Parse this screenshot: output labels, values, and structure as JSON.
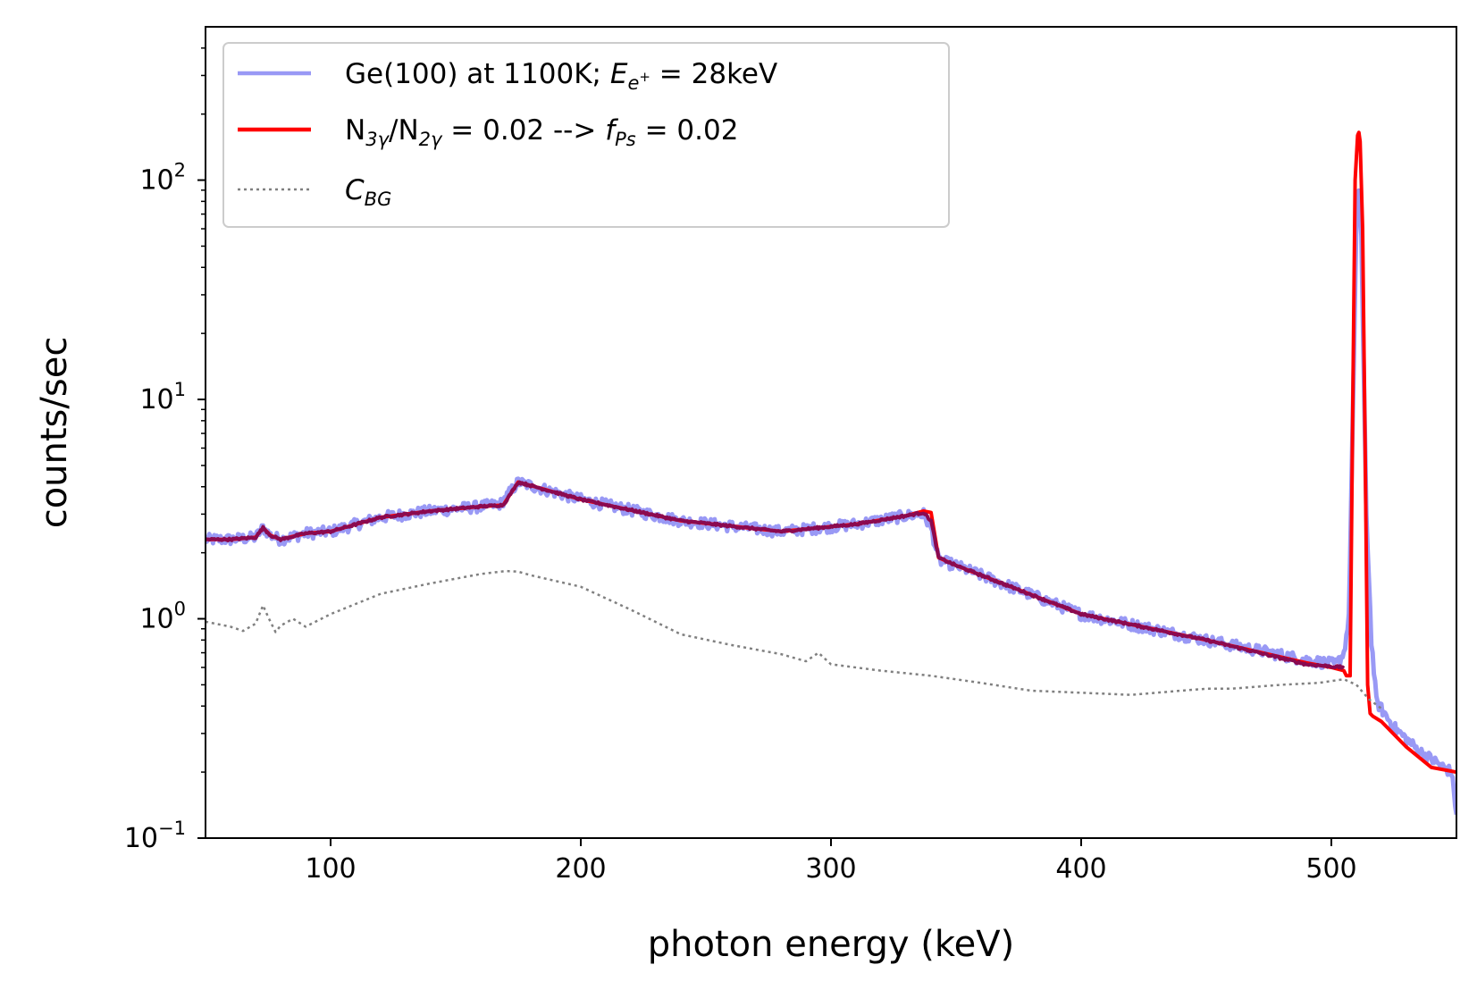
{
  "chart_data": {
    "type": "line",
    "xscale": "linear",
    "yscale": "log",
    "xlim": [
      50,
      550
    ],
    "ylim": [
      0.1,
      500
    ],
    "xlabel": "photon energy (keV)",
    "ylabel": "counts/sec",
    "x_ticks": [
      {
        "value": 100,
        "label": "100"
      },
      {
        "value": 200,
        "label": "200"
      },
      {
        "value": 300,
        "label": "300"
      },
      {
        "value": 400,
        "label": "400"
      },
      {
        "value": 500,
        "label": "500"
      }
    ],
    "y_ticks": [
      {
        "value": 0.1,
        "base": "10",
        "exp": "−1"
      },
      {
        "value": 1,
        "base": "10",
        "exp": "0"
      },
      {
        "value": 10,
        "base": "10",
        "exp": "1"
      },
      {
        "value": 100,
        "base": "10",
        "exp": "2"
      }
    ],
    "legend": {
      "location": "upper-left",
      "entries": [
        {
          "series": "measured",
          "parts": [
            {
              "t": "Ge(100) at 1100K; ",
              "s": "n"
            },
            {
              "t": "E",
              "s": "i"
            },
            {
              "t": "e",
              "s": "sub"
            },
            {
              "t": "+",
              "s": "subsup"
            },
            {
              "t": " = 28keV",
              "s": "n"
            }
          ]
        },
        {
          "series": "fit",
          "parts": [
            {
              "t": "N",
              "s": "n"
            },
            {
              "t": "3γ",
              "s": "sub"
            },
            {
              "t": "/N",
              "s": "n"
            },
            {
              "t": "2γ",
              "s": "sub"
            },
            {
              "t": " = 0.02 --> ",
              "s": "n"
            },
            {
              "t": "f",
              "s": "i"
            },
            {
              "t": "Ps",
              "s": "sub"
            },
            {
              "t": " = 0.02",
              "s": "n"
            }
          ]
        },
        {
          "series": "background",
          "parts": [
            {
              "t": "C",
              "s": "i"
            },
            {
              "t": "BG",
              "s": "sub"
            }
          ]
        }
      ]
    },
    "series": [
      {
        "name": "measured",
        "label": "Ge(100) at 1100K; Ee+ = 28keV",
        "color": "#9999f5",
        "style": "solid",
        "noise": 0.06,
        "x": [
          50,
          60,
          70,
          73,
          76,
          80,
          90,
          100,
          120,
          140,
          160,
          168,
          175,
          200,
          240,
          280,
          310,
          330,
          337,
          340,
          343,
          350,
          400,
          450,
          490,
          502,
          505,
          507,
          509,
          510,
          511,
          512,
          513,
          514,
          516,
          518,
          525,
          535,
          545,
          548,
          550
        ],
        "y": [
          2.3,
          2.3,
          2.35,
          2.6,
          2.4,
          2.3,
          2.45,
          2.5,
          2.9,
          3.1,
          3.25,
          3.35,
          4.2,
          3.5,
          2.8,
          2.5,
          2.7,
          2.95,
          3.0,
          2.6,
          1.85,
          1.75,
          1.05,
          0.8,
          0.65,
          0.62,
          0.7,
          1.0,
          15,
          60,
          90,
          55,
          12,
          3.0,
          0.8,
          0.42,
          0.32,
          0.25,
          0.21,
          0.2,
          0.13
        ]
      },
      {
        "name": "fit",
        "label": "N3γ/N2γ = 0.02 --> fPs = 0.02",
        "color": "#ff0000",
        "style": "solid",
        "noise": 0,
        "x": [
          50,
          60,
          70,
          73,
          76,
          80,
          90,
          100,
          120,
          140,
          160,
          169,
          175,
          200,
          240,
          280,
          310,
          330,
          337,
          340,
          343,
          350,
          400,
          450,
          490,
          500,
          505,
          506,
          507.5,
          508.5,
          509.5,
          510.5,
          511,
          511.5,
          512.5,
          513.5,
          514.5,
          515.5,
          516.5,
          520,
          530,
          540,
          550
        ],
        "y": [
          2.3,
          2.3,
          2.35,
          2.6,
          2.4,
          2.3,
          2.45,
          2.5,
          2.9,
          3.1,
          3.25,
          3.3,
          4.2,
          3.5,
          2.8,
          2.5,
          2.7,
          2.95,
          3.1,
          3.05,
          1.9,
          1.75,
          1.05,
          0.8,
          0.63,
          0.6,
          0.58,
          0.55,
          0.55,
          8,
          100,
          160,
          165,
          150,
          60,
          6,
          0.5,
          0.37,
          0.36,
          0.34,
          0.26,
          0.21,
          0.2
        ]
      },
      {
        "name": "overlap",
        "label": "",
        "color": "#8b0a50",
        "style": "solid",
        "noise": 0.012,
        "x": [
          50,
          60,
          70,
          73,
          76,
          80,
          90,
          100,
          120,
          140,
          160,
          169,
          175,
          200,
          240,
          280,
          310,
          330,
          337,
          340,
          343,
          350,
          400,
          450,
          490,
          505
        ],
        "y": [
          2.3,
          2.3,
          2.35,
          2.6,
          2.4,
          2.3,
          2.45,
          2.5,
          2.9,
          3.1,
          3.25,
          3.3,
          4.2,
          3.5,
          2.8,
          2.5,
          2.7,
          2.95,
          3.05,
          2.8,
          1.9,
          1.75,
          1.05,
          0.8,
          0.62,
          0.6
        ]
      },
      {
        "name": "background",
        "label": "CBG",
        "color": "#808080",
        "style": "dotted",
        "noise": 0,
        "x": [
          50,
          60,
          65,
          70,
          73,
          75,
          78,
          80,
          85,
          90,
          100,
          120,
          140,
          160,
          170,
          175,
          180,
          200,
          220,
          240,
          260,
          280,
          290,
          295,
          300,
          320,
          340,
          360,
          380,
          400,
          420,
          440,
          450,
          460,
          480,
          495,
          500,
          505,
          510,
          515,
          520
        ],
        "y": [
          0.97,
          0.92,
          0.88,
          0.95,
          1.15,
          1.02,
          0.87,
          0.93,
          1.0,
          0.92,
          1.05,
          1.3,
          1.45,
          1.6,
          1.65,
          1.64,
          1.58,
          1.4,
          1.1,
          0.85,
          0.76,
          0.69,
          0.64,
          0.7,
          0.62,
          0.58,
          0.55,
          0.51,
          0.47,
          0.46,
          0.45,
          0.47,
          0.48,
          0.48,
          0.5,
          0.51,
          0.52,
          0.53,
          0.5,
          0.43,
          0.39
        ]
      }
    ]
  }
}
